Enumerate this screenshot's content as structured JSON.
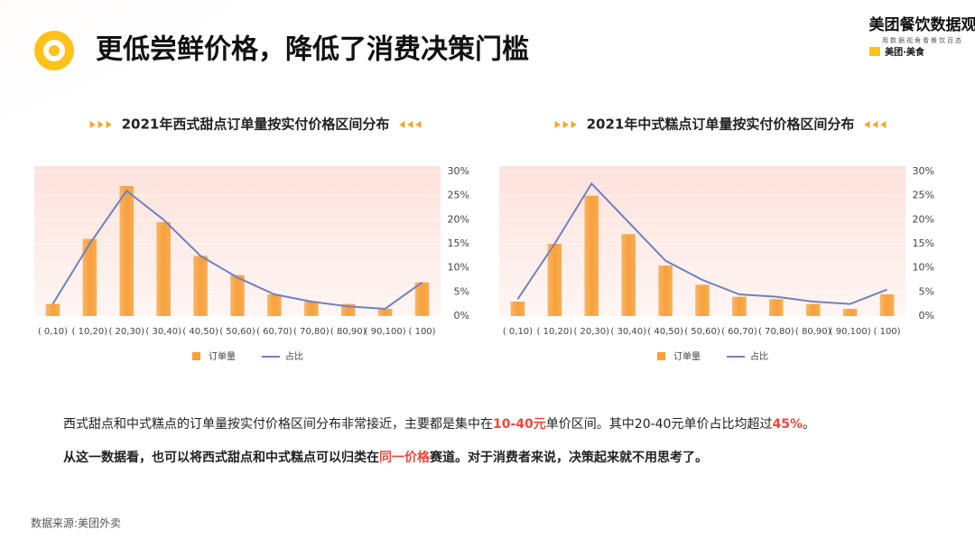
{
  "header": {
    "title": "更低尝鲜价格，降低了消费决策门槛",
    "brand": "美团餐饮数据观",
    "brand_tagline": "用数据视角看餐饮百态",
    "brand_logo": "美团·美食"
  },
  "chart_data": [
    {
      "type": "bar",
      "title": "2021年西式甜点订单量按实付价格区间分布",
      "categories": [
        "( 0,10)",
        "( 10,20)",
        "( 20,30)",
        "( 30,40)",
        "( 40,50)",
        "( 50,60)",
        "( 60,70)",
        "( 70,80)",
        "( 80,90)",
        "( 90,100)",
        "( 100)"
      ],
      "series": [
        {
          "name": "订单量",
          "type": "bar",
          "color": "#f7a13a",
          "values": [
            2.5,
            16,
            27,
            19.5,
            12.5,
            8.5,
            4.5,
            3,
            2.5,
            1.5,
            7
          ]
        },
        {
          "name": "占比",
          "type": "line",
          "color": "#7080c0",
          "values": [
            2.5,
            15,
            26,
            20,
            12.5,
            8,
            4.5,
            3,
            2,
            1.5,
            7
          ]
        }
      ],
      "ylim": [
        0,
        30
      ],
      "yticks": [
        {
          "value": 0,
          "label": "0%"
        },
        {
          "value": 5,
          "label": "5%"
        },
        {
          "value": 10,
          "label": "10%"
        },
        {
          "value": 15,
          "label": "15%"
        },
        {
          "value": 20,
          "label": "20%"
        },
        {
          "value": 25,
          "label": "25%"
        },
        {
          "value": 30,
          "label": "30%"
        }
      ],
      "grid": true,
      "legend": "bottom"
    },
    {
      "type": "bar",
      "title": "2021年中式糕点订单量按实付价格区间分布",
      "categories": [
        "( 0,10)",
        "( 10,20)",
        "( 20,30)",
        "( 30,40)",
        "( 40,50)",
        "( 50,60)",
        "( 60,70)",
        "( 70,80)",
        "( 80,90)",
        "( 90,100)",
        "( 100)"
      ],
      "series": [
        {
          "name": "订单量",
          "type": "bar",
          "color": "#f7a13a",
          "values": [
            3,
            15,
            25,
            17,
            10.5,
            6.5,
            4,
            3.5,
            2.5,
            1.5,
            4.5
          ]
        },
        {
          "name": "占比",
          "type": "line",
          "color": "#7080c0",
          "values": [
            3.5,
            15,
            27.5,
            19.5,
            11.5,
            7.5,
            4.5,
            4,
            3,
            2.5,
            5.5
          ]
        }
      ],
      "ylim": [
        0,
        30
      ],
      "yticks": [
        {
          "value": 0,
          "label": "0%"
        },
        {
          "value": 5,
          "label": "5%"
        },
        {
          "value": 10,
          "label": "10%"
        },
        {
          "value": 15,
          "label": "15%"
        },
        {
          "value": 20,
          "label": "20%"
        },
        {
          "value": 25,
          "label": "25%"
        },
        {
          "value": 30,
          "label": "30%"
        }
      ],
      "grid": true,
      "legend": "bottom"
    }
  ],
  "body": {
    "line1": [
      "西式甜点和中式糕点的订单量按实付价格区间分布非常接近，主要都是集中在",
      "10-40元",
      "单价区间。其中20-40元单价占比均超过",
      "45%",
      "。"
    ],
    "line2": [
      "从这一数据看，也可以将西式甜点和中式糕点可以归类在",
      "同一价格",
      "赛道。对于消费者来说，决策起来就不用思考了。"
    ]
  },
  "source": "数据来源:美团外卖"
}
